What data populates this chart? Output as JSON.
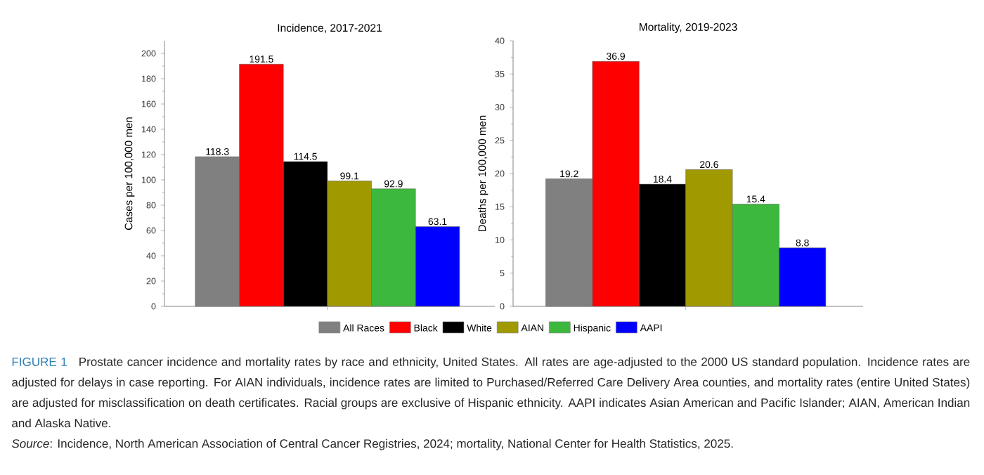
{
  "chart_data": [
    {
      "type": "bar",
      "title": "Incidence, 2017-2021",
      "ylabel": "Cases per 100,000 men",
      "categories": [
        null
      ],
      "series": [
        {
          "name": "All Races",
          "color": "#808080",
          "values": [
            118.3
          ]
        },
        {
          "name": "Black",
          "color": "#ff0000",
          "values": [
            191.5
          ]
        },
        {
          "name": "White",
          "color": "#000000",
          "values": [
            114.5
          ]
        },
        {
          "name": "AIAN",
          "color": "#a09a00",
          "values": [
            99.1
          ]
        },
        {
          "name": "Hispanic",
          "color": "#3cb93c",
          "values": [
            92.9
          ]
        },
        {
          "name": "AAPI",
          "color": "#0000ff",
          "values": [
            63.1
          ]
        }
      ],
      "ylim": [
        0,
        210
      ],
      "yticks": [
        0,
        20,
        40,
        60,
        80,
        100,
        120,
        140,
        160,
        180,
        200
      ],
      "data_labels": true,
      "legend": "bottom",
      "annotations": [
        "FIGURE 1",
        "Prostate cancer incidence and mortality rates by race and ethnicity, United States. All rates are age-adjusted to the 2000 US standard population. Incidence rates are adjusted for delays in case reporting. For AIAN individuals, incidence rates are limited to Purchased/Referred Care Delivery Area counties, and mortality rates (entire United States) are adjusted for misclassification on death certificates. Racial groups are exclusive of Hispanic ethnicity. AAPI indicates Asian American and Pacific Islander; AIAN, American Indian and Alaska Native.",
        "*Source*: Incidence, North American Association of Central Cancer Registries, 2024; mortality, National Center for Health Statistics, 2025."
      ]
    },
    {
      "type": "bar",
      "title": "Mortality, 2019-2023",
      "ylabel": "Deaths per 100,000 men",
      "categories": [
        null
      ],
      "series": [
        {
          "color": "#808080",
          "values": [
            19.2
          ]
        },
        {
          "color": "#ff0000",
          "values": [
            36.9
          ]
        },
        {
          "color": "#000000",
          "values": [
            18.4
          ]
        },
        {
          "color": "#a09a00",
          "values": [
            20.6
          ]
        },
        {
          "color": "#3cb93c",
          "values": [
            15.4
          ]
        },
        {
          "color": "#0000ff",
          "values": [
            8.8
          ]
        }
      ],
      "ylim": [
        0,
        40
      ],
      "yticks": [
        0,
        5,
        10,
        15,
        20,
        25,
        30,
        35,
        40
      ],
      "data_labels": true
    }
  ]
}
